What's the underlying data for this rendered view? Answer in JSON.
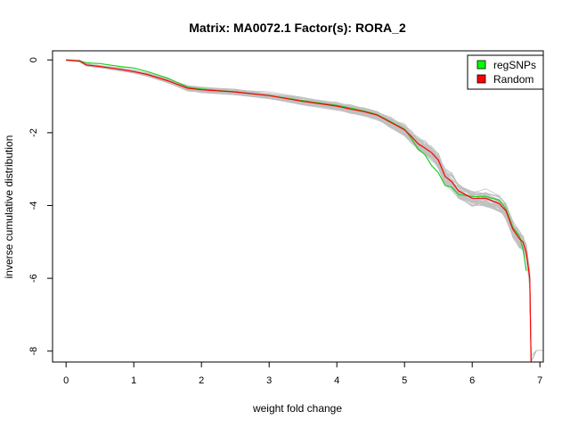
{
  "chart_data": {
    "type": "line",
    "title": "Matrix: MA0072.1 Factor(s): RORA_2",
    "xlabel": "weight fold change",
    "ylabel": "inverse cumulative distribution",
    "xlim": [
      -0.2,
      7.05
    ],
    "ylim": [
      -8.3,
      0.25
    ],
    "xticks": [
      0,
      1,
      2,
      3,
      4,
      5,
      6,
      7
    ],
    "yticks": [
      0,
      -2,
      -4,
      -6,
      -8
    ],
    "grid": false,
    "legend": {
      "position": "top-right",
      "entries": [
        {
          "label": "regSNPs",
          "color": "#00ff00"
        },
        {
          "label": "Random",
          "color": "#ff0000"
        }
      ]
    },
    "background_series": {
      "color": "#c0c0c0",
      "count": 40,
      "description": "random permutation curves"
    },
    "series": [
      {
        "name": "regSNPs",
        "color": "#22cc22",
        "x": [
          0.0,
          0.2,
          0.3,
          0.5,
          0.8,
          1.0,
          1.2,
          1.5,
          1.8,
          2.0,
          2.5,
          3.0,
          3.5,
          4.0,
          4.2,
          4.4,
          4.6,
          4.8,
          5.0,
          5.1,
          5.2,
          5.3,
          5.4,
          5.5,
          5.6,
          5.7,
          5.8,
          6.0,
          6.2,
          6.4,
          6.5,
          6.6,
          6.7,
          6.75,
          6.8
        ],
        "y": [
          0.0,
          -0.03,
          -0.08,
          -0.1,
          -0.18,
          -0.22,
          -0.32,
          -0.5,
          -0.75,
          -0.8,
          -0.88,
          -0.98,
          -1.12,
          -1.25,
          -1.32,
          -1.4,
          -1.5,
          -1.7,
          -1.9,
          -2.15,
          -2.45,
          -2.6,
          -2.9,
          -3.1,
          -3.45,
          -3.5,
          -3.7,
          -3.75,
          -3.75,
          -3.85,
          -4.1,
          -4.6,
          -4.85,
          -5.2,
          -5.8
        ]
      },
      {
        "name": "Random",
        "color": "#ff0000",
        "x": [
          0.0,
          0.2,
          0.3,
          0.5,
          0.8,
          1.0,
          1.2,
          1.5,
          1.8,
          2.0,
          2.5,
          3.0,
          3.5,
          4.0,
          4.2,
          4.4,
          4.6,
          4.8,
          5.0,
          5.1,
          5.2,
          5.3,
          5.4,
          5.5,
          5.6,
          5.7,
          5.8,
          6.0,
          6.2,
          6.4,
          6.5,
          6.6,
          6.7,
          6.75,
          6.8,
          6.85,
          6.87
        ],
        "y": [
          0.0,
          -0.03,
          -0.14,
          -0.18,
          -0.26,
          -0.32,
          -0.4,
          -0.57,
          -0.78,
          -0.82,
          -0.88,
          -0.98,
          -1.14,
          -1.27,
          -1.35,
          -1.42,
          -1.52,
          -1.72,
          -1.92,
          -2.1,
          -2.3,
          -2.42,
          -2.55,
          -2.75,
          -3.2,
          -3.35,
          -3.6,
          -3.8,
          -3.8,
          -3.95,
          -4.15,
          -4.65,
          -4.92,
          -5.0,
          -5.3,
          -6.0,
          -8.3
        ]
      }
    ]
  }
}
